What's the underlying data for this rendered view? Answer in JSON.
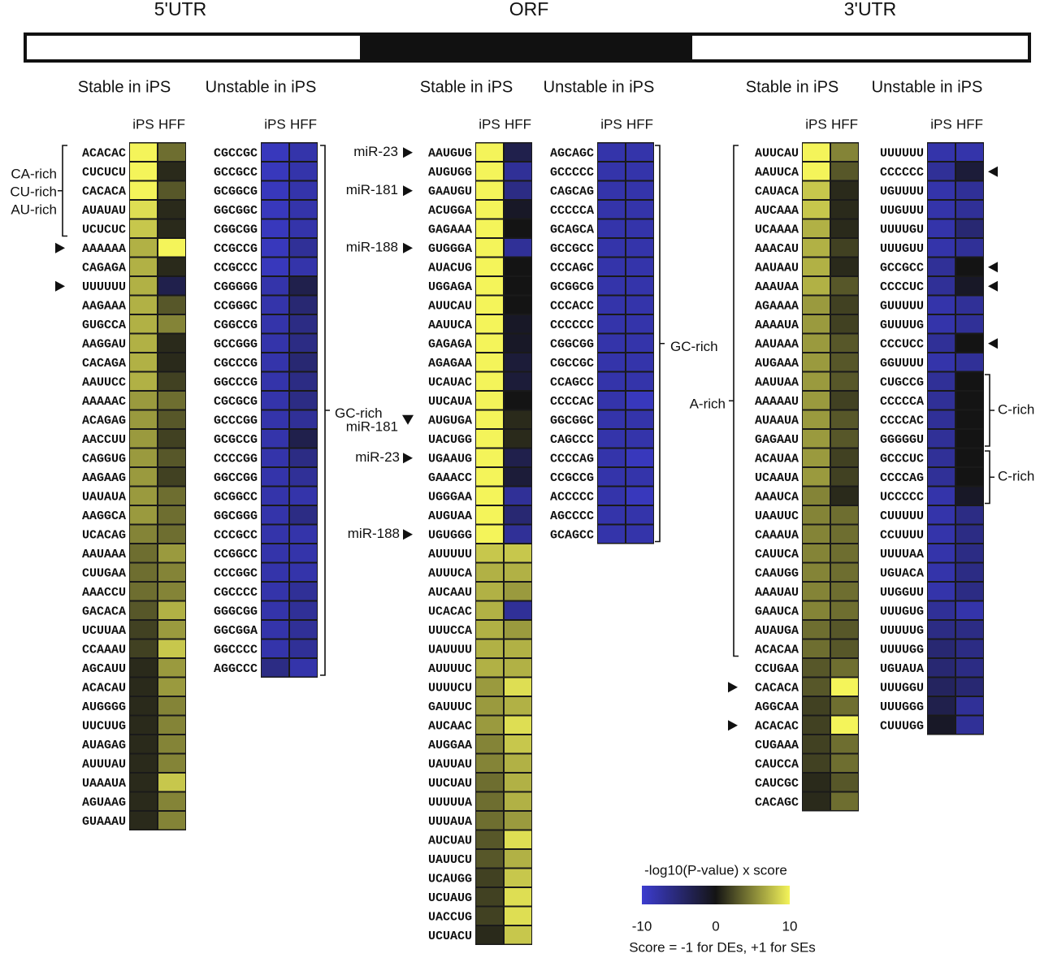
{
  "header": {
    "regions": [
      "5'UTR",
      "ORF",
      "3'UTR"
    ]
  },
  "legend": {
    "title": "-log10(P-value) x score",
    "ticks": [
      -10,
      0,
      10
    ],
    "note": "Score = -1 for DEs, +1 for SEs",
    "colors": [
      "#3c3ccf",
      "#141414",
      "#f4f45a"
    ]
  },
  "panels": [
    {
      "title": "Stable in iPS",
      "columns": [
        "iPS",
        "HFF"
      ],
      "motifs": [
        "ACACAC",
        "CUCUCU",
        "CACACA",
        "AUAUAU",
        "UCUCUC",
        "AAAAAA",
        "CAGAGA",
        "UUUUUU",
        "AAGAAA",
        "GUGCCA",
        "AAGGAU",
        "CACAGA",
        "AAUUCC",
        "AAAAAC",
        "ACAGAG",
        "AACCUU",
        "CAGGUG",
        "AAGAAG",
        "UAUAUA",
        "AAGGCA",
        "UCACAG",
        "AAUAAA",
        "CUUGAA",
        "AAACCU",
        "GACACA",
        "UCUUAA",
        "CCAAAU",
        "AGCAUU",
        "ACACAU",
        "AUGGGG",
        "UUCUUG",
        "AUAGAG",
        "AUUUAU",
        "UAAAUA",
        "AGUAAG",
        "GUAAAU"
      ],
      "ips": [
        10,
        10,
        10,
        9,
        8,
        7,
        7,
        7,
        7,
        7,
        7,
        7,
        7,
        6,
        6,
        6,
        6,
        6,
        6,
        6,
        5,
        4,
        4,
        4,
        3,
        2,
        2,
        1,
        1,
        1,
        1,
        1,
        1,
        1,
        1,
        1
      ],
      "hff": [
        4,
        1,
        3,
        1,
        1,
        10,
        1,
        -3,
        3,
        5,
        1,
        1,
        2,
        4,
        3,
        2,
        3,
        2,
        4,
        4,
        4,
        6,
        5,
        5,
        7,
        6,
        8,
        6,
        6,
        5,
        5,
        5,
        5,
        8,
        5,
        5
      ],
      "annotations": [
        "CA-rich",
        "CU-rich",
        "AU-rich"
      ]
    },
    {
      "title": "Unstable in iPS",
      "columns": [
        "iPS",
        "HFF"
      ],
      "motifs": [
        "CGCCGC",
        "GCCGCC",
        "GCGGCG",
        "GGCGGC",
        "CGGCGG",
        "CCGCCG",
        "CCGCCC",
        "CGGGGG",
        "CCGGGC",
        "CGGCCG",
        "GCCGGG",
        "CGCCCG",
        "GGCCCG",
        "CGCGCG",
        "GCCCGG",
        "GCGCCG",
        "CCCCGG",
        "GGCCGG",
        "GCGGCC",
        "GGCGGG",
        "CCCGCC",
        "CCGGCC",
        "CCCGGC",
        "CGCCCC",
        "GGGCGG",
        "GGCGGA",
        "GGCCCC",
        "AGGCCC"
      ],
      "ips": [
        -9,
        -9,
        -9,
        -9,
        -9,
        -9,
        -9,
        -8,
        -8,
        -8,
        -8,
        -8,
        -8,
        -8,
        -8,
        -8,
        -8,
        -8,
        -8,
        -8,
        -8,
        -8,
        -8,
        -8,
        -8,
        -8,
        -8,
        -6
      ],
      "hff": [
        -8,
        -8,
        -8,
        -8,
        -8,
        -7,
        -8,
        -3,
        -5,
        -6,
        -6,
        -5,
        -6,
        -6,
        -7,
        -3,
        -6,
        -7,
        -8,
        -6,
        -8,
        -8,
        -8,
        -7,
        -7,
        -7,
        -7,
        -8
      ],
      "annotations": [
        "GC-rich"
      ]
    },
    {
      "title": "Stable in iPS",
      "columns": [
        "iPS",
        "HFF"
      ],
      "motifs": [
        "AAUGUG",
        "AUGUGG",
        "GAAUGU",
        "ACUGGA",
        "GAGAAA",
        "GUGGGA",
        "AUACUG",
        "UGGAGA",
        "AUUCAU",
        "AAUUCA",
        "GAGAGA",
        "AGAGAA",
        "UCAUAC",
        "UUCAUA",
        "AUGUGA",
        "UACUGG",
        "UGAAUG",
        "GAAACC",
        "UGGGAA",
        "AUGUAA",
        "UGUGGG",
        "AUUUUU",
        "AUUUCA",
        "AUCAAU",
        "UCACAC",
        "UUUCCA",
        "UAUUUU",
        "AUUUUC",
        "UUUUCU",
        "GAUUUC",
        "AUCAAC",
        "AUGGAA",
        "UAUUAU",
        "UUCUAU",
        "UUUUUA",
        "UUUAUA",
        "AUCUAU",
        "UAUUCU",
        "UCAUGG",
        "UCUAUG",
        "UACCUG",
        "UCUACU"
      ],
      "ips": [
        10,
        10,
        10,
        10,
        10,
        10,
        10,
        10,
        10,
        10,
        10,
        10,
        10,
        10,
        10,
        10,
        10,
        10,
        10,
        10,
        10,
        8,
        7,
        7,
        7,
        7,
        7,
        7,
        6,
        6,
        6,
        5,
        5,
        4,
        4,
        4,
        3,
        3,
        2,
        2,
        2,
        1
      ],
      "hff": [
        -3,
        -7,
        -6,
        -1,
        0,
        -7,
        0,
        0,
        0,
        -1,
        -1,
        -2,
        -2,
        0,
        1,
        1,
        -3,
        -2,
        -7,
        -5,
        -7,
        8,
        7,
        6,
        -7,
        6,
        7,
        7,
        9,
        7,
        9,
        8,
        7,
        7,
        7,
        6,
        9,
        7,
        8,
        9,
        9,
        8
      ],
      "annotations": [
        "miR-23",
        "miR-181",
        "miR-188",
        "miR-181",
        "miR-23",
        "miR-188"
      ]
    },
    {
      "title": "Unstable in iPS",
      "columns": [
        "iPS",
        "HFF"
      ],
      "motifs": [
        "AGCAGC",
        "GCCCCC",
        "CAGCAG",
        "CCCCCA",
        "GCAGCA",
        "GCCGCC",
        "CCCAGC",
        "GCGGCG",
        "CCCACC",
        "CCCCCC",
        "CGGCGG",
        "CGCCGC",
        "CCAGCC",
        "CCCCAC",
        "GGCGGC",
        "CAGCCC",
        "CCCCAG",
        "CCGCCG",
        "ACCCCC",
        "AGCCCC",
        "GCAGCC"
      ],
      "ips": [
        -8,
        -8,
        -8,
        -8,
        -8,
        -8,
        -8,
        -8,
        -8,
        -8,
        -8,
        -8,
        -8,
        -8,
        -8,
        -8,
        -8,
        -8,
        -8,
        -8,
        -8
      ],
      "hff": [
        -8,
        -8,
        -8,
        -8,
        -8,
        -8,
        -8,
        -8,
        -8,
        -8,
        -8,
        -8,
        -8,
        -9,
        -8,
        -8,
        -9,
        -8,
        -9,
        -8,
        -8
      ],
      "annotations": [
        "GC-rich"
      ]
    },
    {
      "title": "Stable in iPS",
      "columns": [
        "iPS",
        "HFF"
      ],
      "motifs": [
        "AUUCAU",
        "AAUUCA",
        "CAUACA",
        "AUCAAA",
        "UCAAAA",
        "AAACAU",
        "AAUAAU",
        "AAAUAA",
        "AGAAAA",
        "AAAAUA",
        "AAUAAA",
        "AUGAAA",
        "AAUUAA",
        "AAAAAU",
        "AUAAUA",
        "GAGAAU",
        "ACAUAA",
        "UCAAUA",
        "AAAUCA",
        "UAAUUC",
        "CAAAUA",
        "CAUUCA",
        "CAAUGG",
        "AAAUAU",
        "GAAUCA",
        "AUAUGA",
        "ACACAA",
        "CCUGAA",
        "CACACA",
        "AGGCAA",
        "ACACAC",
        "CUGAAA",
        "CAUCCA",
        "CAUCGC",
        "CACAGC"
      ],
      "ips": [
        10,
        10,
        8,
        8,
        7,
        7,
        7,
        7,
        6,
        6,
        6,
        6,
        6,
        6,
        6,
        6,
        6,
        6,
        5,
        5,
        5,
        5,
        5,
        5,
        5,
        4,
        4,
        3,
        3,
        2,
        2,
        2,
        2,
        1,
        1
      ],
      "hff": [
        5,
        3,
        1,
        1,
        1,
        2,
        1,
        3,
        2,
        2,
        3,
        3,
        3,
        2,
        3,
        3,
        2,
        2,
        1,
        4,
        4,
        4,
        4,
        4,
        4,
        3,
        3,
        4,
        10,
        4,
        10,
        4,
        4,
        3,
        4
      ],
      "annotations": [
        "A-rich"
      ]
    },
    {
      "title": "Unstable in iPS",
      "columns": [
        "iPS",
        "HFF"
      ],
      "motifs": [
        "UUUUUU",
        "CCCCCC",
        "UGUUUU",
        "UUGUUU",
        "UUUUGU",
        "UUUGUU",
        "GCCGCC",
        "CCCCUC",
        "GUUUUU",
        "GUUUUG",
        "CCCUCC",
        "GGUUUU",
        "CUGCCG",
        "CCCCCA",
        "CCCCAC",
        "GGGGGU",
        "GCCCUC",
        "CCCCAG",
        "UCCCCC",
        "CUUUUU",
        "CCUUUU",
        "UUUUAA",
        "UGUACA",
        "UUGGUU",
        "UUUGUG",
        "UUUUUG",
        "UUUUGG",
        "UGUAUA",
        "UUUGGU",
        "UUUGGG",
        "CUUUGG"
      ],
      "ips": [
        -8,
        -7,
        -8,
        -8,
        -8,
        -8,
        -7,
        -7,
        -8,
        -8,
        -7,
        -8,
        -7,
        -7,
        -7,
        -7,
        -7,
        -7,
        -8,
        -8,
        -8,
        -8,
        -8,
        -8,
        -7,
        -6,
        -5,
        -5,
        -4,
        -3,
        -1
      ],
      "hff": [
        -8,
        -2,
        -7,
        -7,
        -5,
        -7,
        0,
        -1,
        -7,
        -7,
        0,
        -7,
        0,
        0,
        0,
        0,
        0,
        0,
        -1,
        -6,
        -6,
        -6,
        -6,
        -6,
        -8,
        -6,
        -6,
        -6,
        -5,
        -7,
        -7
      ],
      "annotations": [
        "C-rich",
        "C-rich"
      ]
    }
  ]
}
